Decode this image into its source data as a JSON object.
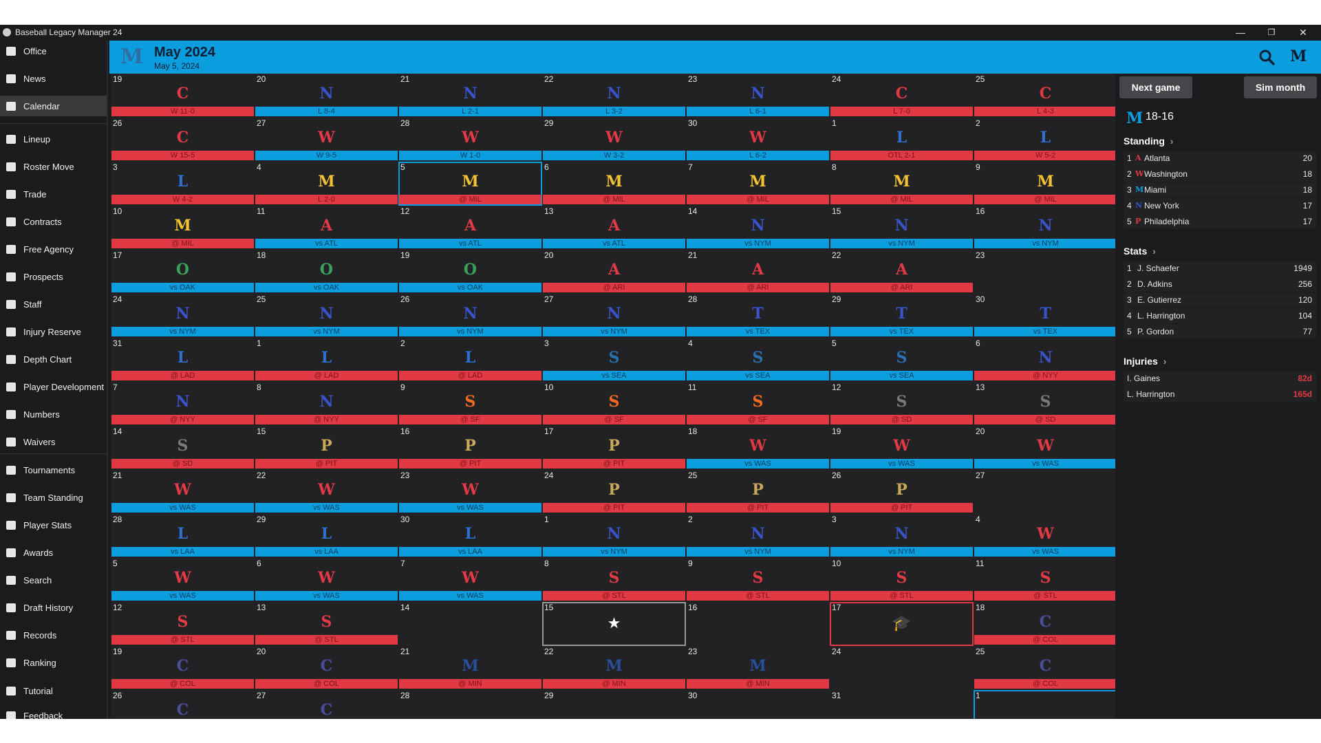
{
  "window": {
    "title": "Baseball Legacy Manager 24",
    "minimize": "—",
    "maximize": "❐",
    "close": "✕"
  },
  "sidebar": [
    {
      "label": "Office",
      "icon": "office-icon"
    },
    {
      "label": "News",
      "icon": "news-icon"
    },
    {
      "label": "Calendar",
      "icon": "calendar-icon",
      "active": true
    },
    {
      "label": "Lineup",
      "icon": "lineup-icon"
    },
    {
      "label": "Roster Move",
      "icon": "roster-move-icon"
    },
    {
      "label": "Trade",
      "icon": "trade-icon"
    },
    {
      "label": "Contracts",
      "icon": "contracts-icon"
    },
    {
      "label": "Free Agency",
      "icon": "free-agency-icon"
    },
    {
      "label": "Prospects",
      "icon": "binoculars-icon"
    },
    {
      "label": "Staff",
      "icon": "staff-icon"
    },
    {
      "label": "Injury Reserve",
      "icon": "injury-icon"
    },
    {
      "label": "Depth Chart",
      "icon": "depth-chart-icon"
    },
    {
      "label": "Player Development",
      "icon": "development-icon"
    },
    {
      "label": "Numbers",
      "icon": "jersey-icon"
    },
    {
      "label": "Waivers",
      "icon": "waivers-icon"
    },
    {
      "label": "Tournaments",
      "icon": "trophy-icon"
    },
    {
      "label": "Team Standing",
      "icon": "list-icon"
    },
    {
      "label": "Player Stats",
      "icon": "stats-icon"
    },
    {
      "label": "Awards",
      "icon": "award-icon"
    },
    {
      "label": "Search",
      "icon": "search-icon"
    },
    {
      "label": "Draft History",
      "icon": "draft-icon"
    },
    {
      "label": "Records",
      "icon": "records-icon"
    },
    {
      "label": "Ranking",
      "icon": "ranking-icon"
    },
    {
      "label": "Tutorial",
      "icon": "help-icon"
    },
    {
      "label": "Feedback",
      "icon": "feedback-icon"
    }
  ],
  "header": {
    "month_title": "May 2024",
    "subtitle": "May 5, 2024",
    "logo": "M",
    "right_logo": "M"
  },
  "colors": {
    "accent": "#0b9ede",
    "loss_or_away": "#e23a44",
    "win_or_home": "#0b9ede",
    "cell_bg": "#222225"
  },
  "calendar": [
    [
      {
        "d": "19",
        "t": "C",
        "c": "#e23a44",
        "txt": "W 11-0",
        "k": "red"
      },
      {
        "d": "20",
        "t": "N",
        "c": "#3954c9",
        "txt": "L 8-4",
        "k": "blue"
      },
      {
        "d": "21",
        "t": "N",
        "c": "#3954c9",
        "txt": "L 2-1",
        "k": "blue"
      },
      {
        "d": "22",
        "t": "N",
        "c": "#3954c9",
        "txt": "L 3-2",
        "k": "blue"
      },
      {
        "d": "23",
        "t": "N",
        "c": "#3954c9",
        "txt": "L 6-1",
        "k": "blue"
      },
      {
        "d": "24",
        "t": "C",
        "c": "#e23a44",
        "txt": "L 7-0",
        "k": "red"
      },
      {
        "d": "25",
        "t": "C",
        "c": "#e23a44",
        "txt": "L 4-3",
        "k": "red"
      }
    ],
    [
      {
        "d": "26",
        "t": "C",
        "c": "#e23a44",
        "txt": "W 15-5",
        "k": "red"
      },
      {
        "d": "27",
        "t": "W",
        "c": "#e23a44",
        "txt": "W 9-5",
        "k": "blue"
      },
      {
        "d": "28",
        "t": "W",
        "c": "#e23a44",
        "txt": "W 1-0",
        "k": "blue"
      },
      {
        "d": "29",
        "t": "W",
        "c": "#e23a44",
        "txt": "W 3-2",
        "k": "blue"
      },
      {
        "d": "30",
        "t": "W",
        "c": "#e23a44",
        "txt": "L 6-2",
        "k": "blue"
      },
      {
        "d": "1",
        "t": "L",
        "c": "#2e6fd0",
        "txt": "OTL 2-1",
        "k": "red"
      },
      {
        "d": "2",
        "t": "L",
        "c": "#2e6fd0",
        "txt": "W 5-2",
        "k": "red"
      }
    ],
    [
      {
        "d": "3",
        "t": "L",
        "c": "#2e6fd0",
        "txt": "W 4-2",
        "k": "red"
      },
      {
        "d": "4",
        "t": "M",
        "c": "#f2c230",
        "txt": "L 2-0",
        "k": "red"
      },
      {
        "d": "5",
        "t": "M",
        "c": "#f2c230",
        "txt": "@ MIL",
        "k": "red",
        "hl": true
      },
      {
        "d": "6",
        "t": "M",
        "c": "#f2c230",
        "txt": "@ MIL",
        "k": "red"
      },
      {
        "d": "7",
        "t": "M",
        "c": "#f2c230",
        "txt": "@ MIL",
        "k": "red"
      },
      {
        "d": "8",
        "t": "M",
        "c": "#f2c230",
        "txt": "@ MIL",
        "k": "red"
      },
      {
        "d": "9",
        "t": "M",
        "c": "#f2c230",
        "txt": "@ MIL",
        "k": "red"
      }
    ],
    [
      {
        "d": "10",
        "t": "M",
        "c": "#f2c230",
        "txt": "@ MIL",
        "k": "red"
      },
      {
        "d": "11",
        "t": "A",
        "c": "#e23a44",
        "txt": "vs ATL",
        "k": "blue"
      },
      {
        "d": "12",
        "t": "A",
        "c": "#e23a44",
        "txt": "vs ATL",
        "k": "blue"
      },
      {
        "d": "13",
        "t": "A",
        "c": "#e23a44",
        "txt": "vs ATL",
        "k": "blue"
      },
      {
        "d": "14",
        "t": "N",
        "c": "#3954c9",
        "txt": "vs NYM",
        "k": "blue"
      },
      {
        "d": "15",
        "t": "N",
        "c": "#3954c9",
        "txt": "vs NYM",
        "k": "blue"
      },
      {
        "d": "16",
        "t": "N",
        "c": "#3954c9",
        "txt": "vs NYM",
        "k": "blue"
      }
    ],
    [
      {
        "d": "17",
        "t": "O",
        "c": "#3aa05a",
        "txt": "vs OAK",
        "k": "blue"
      },
      {
        "d": "18",
        "t": "O",
        "c": "#3aa05a",
        "txt": "vs OAK",
        "k": "blue"
      },
      {
        "d": "19",
        "t": "O",
        "c": "#3aa05a",
        "txt": "vs OAK",
        "k": "blue"
      },
      {
        "d": "20",
        "t": "A",
        "c": "#e23a44",
        "txt": "@ ARI",
        "k": "red"
      },
      {
        "d": "21",
        "t": "A",
        "c": "#e23a44",
        "txt": "@ ARI",
        "k": "red"
      },
      {
        "d": "22",
        "t": "A",
        "c": "#e23a44",
        "txt": "@ ARI",
        "k": "red"
      },
      {
        "d": "23"
      }
    ],
    [
      {
        "d": "24",
        "t": "N",
        "c": "#3954c9",
        "txt": "vs NYM",
        "k": "blue"
      },
      {
        "d": "25",
        "t": "N",
        "c": "#3954c9",
        "txt": "vs NYM",
        "k": "blue"
      },
      {
        "d": "26",
        "t": "N",
        "c": "#3954c9",
        "txt": "vs NYM",
        "k": "blue"
      },
      {
        "d": "27",
        "t": "N",
        "c": "#3954c9",
        "txt": "vs NYM",
        "k": "blue"
      },
      {
        "d": "28",
        "t": "T",
        "c": "#3954c9",
        "txt": "vs TEX",
        "k": "blue"
      },
      {
        "d": "29",
        "t": "T",
        "c": "#3954c9",
        "txt": "vs TEX",
        "k": "blue"
      },
      {
        "d": "30",
        "t": "T",
        "c": "#3954c9",
        "txt": "vs TEX",
        "k": "blue"
      }
    ],
    [
      {
        "d": "31",
        "t": "L",
        "c": "#2e6fd0",
        "txt": "@ LAD",
        "k": "red"
      },
      {
        "d": "1",
        "t": "L",
        "c": "#2e6fd0",
        "txt": "@ LAD",
        "k": "red"
      },
      {
        "d": "2",
        "t": "L",
        "c": "#2e6fd0",
        "txt": "@ LAD",
        "k": "red"
      },
      {
        "d": "3",
        "t": "S",
        "c": "#2a6fb0",
        "txt": "vs SEA",
        "k": "blue"
      },
      {
        "d": "4",
        "t": "S",
        "c": "#2a6fb0",
        "txt": "vs SEA",
        "k": "blue"
      },
      {
        "d": "5",
        "t": "S",
        "c": "#2a6fb0",
        "txt": "vs SEA",
        "k": "blue"
      },
      {
        "d": "6",
        "t": "N",
        "c": "#3954c9",
        "txt": "@ NYY",
        "k": "red"
      }
    ],
    [
      {
        "d": "7",
        "t": "N",
        "c": "#3954c9",
        "txt": "@ NYY",
        "k": "red"
      },
      {
        "d": "8",
        "t": "N",
        "c": "#3954c9",
        "txt": "@ NYY",
        "k": "red"
      },
      {
        "d": "9",
        "t": "S",
        "c": "#f26a21",
        "txt": "@ SF",
        "k": "red"
      },
      {
        "d": "10",
        "t": "S",
        "c": "#f26a21",
        "txt": "@ SF",
        "k": "red"
      },
      {
        "d": "11",
        "t": "S",
        "c": "#f26a21",
        "txt": "@ SF",
        "k": "red"
      },
      {
        "d": "12",
        "t": "S",
        "c": "#7a7a7a",
        "txt": "@ SD",
        "k": "red"
      },
      {
        "d": "13",
        "t": "S",
        "c": "#7a7a7a",
        "txt": "@ SD",
        "k": "red"
      }
    ],
    [
      {
        "d": "14",
        "t": "S",
        "c": "#7a7a7a",
        "txt": "@ SD",
        "k": "red"
      },
      {
        "d": "15",
        "t": "P",
        "c": "#c9a85a",
        "txt": "@ PIT",
        "k": "red"
      },
      {
        "d": "16",
        "t": "P",
        "c": "#c9a85a",
        "txt": "@ PIT",
        "k": "red"
      },
      {
        "d": "17",
        "t": "P",
        "c": "#c9a85a",
        "txt": "@ PIT",
        "k": "red"
      },
      {
        "d": "18",
        "t": "W",
        "c": "#e23a44",
        "txt": "vs WAS",
        "k": "blue"
      },
      {
        "d": "19",
        "t": "W",
        "c": "#e23a44",
        "txt": "vs WAS",
        "k": "blue"
      },
      {
        "d": "20",
        "t": "W",
        "c": "#e23a44",
        "txt": "vs WAS",
        "k": "blue"
      }
    ],
    [
      {
        "d": "21",
        "t": "W",
        "c": "#e23a44",
        "txt": "vs WAS",
        "k": "blue"
      },
      {
        "d": "22",
        "t": "W",
        "c": "#e23a44",
        "txt": "vs WAS",
        "k": "blue"
      },
      {
        "d": "23",
        "t": "W",
        "c": "#e23a44",
        "txt": "vs WAS",
        "k": "blue"
      },
      {
        "d": "24",
        "t": "P",
        "c": "#c9a85a",
        "txt": "@ PIT",
        "k": "red"
      },
      {
        "d": "25",
        "t": "P",
        "c": "#c9a85a",
        "txt": "@ PIT",
        "k": "red"
      },
      {
        "d": "26",
        "t": "P",
        "c": "#c9a85a",
        "txt": "@ PIT",
        "k": "red"
      },
      {
        "d": "27"
      }
    ],
    [
      {
        "d": "28",
        "t": "L",
        "c": "#2e6fd0",
        "txt": "vs LAA",
        "k": "blue"
      },
      {
        "d": "29",
        "t": "L",
        "c": "#2e6fd0",
        "txt": "vs LAA",
        "k": "blue"
      },
      {
        "d": "30",
        "t": "L",
        "c": "#2e6fd0",
        "txt": "vs LAA",
        "k": "blue"
      },
      {
        "d": "1",
        "t": "N",
        "c": "#3954c9",
        "txt": "vs NYM",
        "k": "blue"
      },
      {
        "d": "2",
        "t": "N",
        "c": "#3954c9",
        "txt": "vs NYM",
        "k": "blue"
      },
      {
        "d": "3",
        "t": "N",
        "c": "#3954c9",
        "txt": "vs NYM",
        "k": "blue"
      },
      {
        "d": "4",
        "t": "W",
        "c": "#e23a44",
        "txt": "vs WAS",
        "k": "blue"
      }
    ],
    [
      {
        "d": "5",
        "t": "W",
        "c": "#e23a44",
        "txt": "vs WAS",
        "k": "blue"
      },
      {
        "d": "6",
        "t": "W",
        "c": "#e23a44",
        "txt": "vs WAS",
        "k": "blue"
      },
      {
        "d": "7",
        "t": "W",
        "c": "#e23a44",
        "txt": "vs WAS",
        "k": "blue"
      },
      {
        "d": "8",
        "t": "S",
        "c": "#e23a44",
        "txt": "@ STL",
        "k": "red"
      },
      {
        "d": "9",
        "t": "S",
        "c": "#e23a44",
        "txt": "@ STL",
        "k": "red"
      },
      {
        "d": "10",
        "t": "S",
        "c": "#e23a44",
        "txt": "@ STL",
        "k": "red"
      },
      {
        "d": "11",
        "t": "S",
        "c": "#e23a44",
        "txt": "@ STL",
        "k": "red"
      }
    ],
    [
      {
        "d": "12",
        "t": "S",
        "c": "#e23a44",
        "txt": "@ STL",
        "k": "red"
      },
      {
        "d": "13",
        "t": "S",
        "c": "#e23a44",
        "txt": "@ STL",
        "k": "red"
      },
      {
        "d": "14"
      },
      {
        "d": "15",
        "sym": "★",
        "sp": "w"
      },
      {
        "d": "16"
      },
      {
        "d": "17",
        "sym": "🎓",
        "sp": "r"
      },
      {
        "d": "18",
        "t": "C",
        "c": "#4a4f9a",
        "txt": "@ COL",
        "k": "red"
      }
    ],
    [
      {
        "d": "19",
        "t": "C",
        "c": "#4a4f9a",
        "txt": "@ COL",
        "k": "red"
      },
      {
        "d": "20",
        "t": "C",
        "c": "#4a4f9a",
        "txt": "@ COL",
        "k": "red"
      },
      {
        "d": "21",
        "t": "M",
        "c": "#2a4f9a",
        "txt": "@ MIN",
        "k": "red"
      },
      {
        "d": "22",
        "t": "M",
        "c": "#2a4f9a",
        "txt": "@ MIN",
        "k": "red"
      },
      {
        "d": "23",
        "t": "M",
        "c": "#2a4f9a",
        "txt": "@ MIN",
        "k": "red"
      },
      {
        "d": "24"
      },
      {
        "d": "25",
        "t": "C",
        "c": "#4a4f9a",
        "txt": "@ COL",
        "k": "red"
      }
    ],
    [
      {
        "d": "26",
        "t": "C",
        "c": "#4a4f9a"
      },
      {
        "d": "27",
        "t": "C",
        "c": "#4a4f9a"
      },
      {
        "d": "28"
      },
      {
        "d": "29"
      },
      {
        "d": "30"
      },
      {
        "d": "31"
      },
      {
        "d": "1",
        "hl": true
      }
    ]
  ],
  "right_panel": {
    "next_game": "Next game",
    "sim_month": "Sim month",
    "team_logo": "M",
    "record": "18-16",
    "standing_title": "Standing",
    "standing_arrow": "›",
    "standing": [
      {
        "rank": "1",
        "team": "Atlanta",
        "logo": "A",
        "color": "#e23a44",
        "value": "20"
      },
      {
        "rank": "2",
        "team": "Washington",
        "logo": "W",
        "color": "#e23a44",
        "value": "18"
      },
      {
        "rank": "3",
        "team": "Miami",
        "logo": "M",
        "color": "#0b9ede",
        "value": "18"
      },
      {
        "rank": "4",
        "team": "New York",
        "logo": "N",
        "color": "#3954c9",
        "value": "17"
      },
      {
        "rank": "5",
        "team": "Philadelphia",
        "logo": "P",
        "color": "#e23a44",
        "value": "17"
      }
    ],
    "stats_title": "Stats",
    "stats_arrow": "›",
    "stats": [
      {
        "rank": "1",
        "name": "J. Schaefer",
        "value": "1949"
      },
      {
        "rank": "2",
        "name": "D. Adkins",
        "value": "256"
      },
      {
        "rank": "3",
        "name": "E. Gutierrez",
        "value": "120"
      },
      {
        "rank": "4",
        "name": "L. Harrington",
        "value": "104"
      },
      {
        "rank": "5",
        "name": "P. Gordon",
        "value": "77"
      }
    ],
    "injuries_title": "Injuries",
    "injuries_arrow": "›",
    "injuries": [
      {
        "name": "I. Gaines",
        "value": "82d"
      },
      {
        "name": "L. Harrington",
        "value": "165d"
      }
    ]
  }
}
